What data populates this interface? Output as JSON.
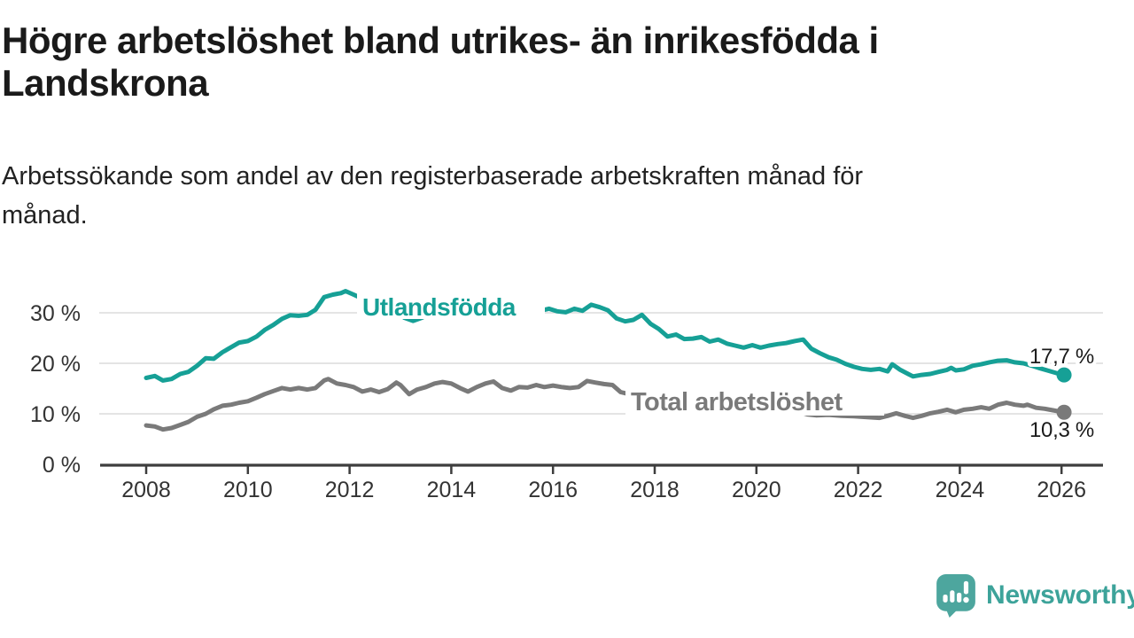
{
  "header": {
    "title": "Högre arbetslöshet bland utrikes- än inrikesfödda i Landskrona",
    "subtitle": "Arbetssökande som andel av den registerbaserade arbetskraften månad för månad."
  },
  "colors": {
    "accent_teal": "#16a096",
    "series_gray": "#7a7a7a",
    "title_text": "#1a1a1a",
    "axis_text": "#333333",
    "gridline": "#dcdcdc",
    "axis_line": "#3d3d3d",
    "logo_teal": "#4da69e",
    "logo_text_teal": "#3da39a",
    "end_label_text": "#1a1a1a"
  },
  "chart_data": {
    "type": "line",
    "title": "Högre arbetslöshet bland utrikes- än inrikesfödda i Landskrona",
    "subtitle": "Arbetssökande som andel av den registerbaserade arbetskraften månad för månad.",
    "xlabel": "",
    "ylabel": "",
    "unit": "%",
    "grid": "horizontal",
    "legend_position": "inline-labels",
    "xlim": [
      2007.6,
      2026.9
    ],
    "ylim": [
      0,
      36
    ],
    "x_ticks": [
      2008,
      2010,
      2012,
      2014,
      2016,
      2018,
      2020,
      2022,
      2024,
      2026
    ],
    "y_ticks": [
      0,
      10,
      20,
      30
    ],
    "y_tick_labels": [
      "0 %",
      "10 %",
      "20 %",
      "30 %"
    ],
    "series": [
      {
        "name": "Utlandsfödda",
        "color": "#16a096",
        "end_value": 17.7,
        "end_label": "17,7 %",
        "points": [
          [
            2008.0,
            17.1
          ],
          [
            2008.17,
            17.5
          ],
          [
            2008.33,
            16.6
          ],
          [
            2008.5,
            16.9
          ],
          [
            2008.67,
            17.9
          ],
          [
            2008.83,
            18.3
          ],
          [
            2009.0,
            19.5
          ],
          [
            2009.17,
            21.0
          ],
          [
            2009.33,
            20.9
          ],
          [
            2009.5,
            22.2
          ],
          [
            2009.67,
            23.2
          ],
          [
            2009.83,
            24.1
          ],
          [
            2010.0,
            24.4
          ],
          [
            2010.17,
            25.3
          ],
          [
            2010.33,
            26.6
          ],
          [
            2010.5,
            27.6
          ],
          [
            2010.67,
            28.8
          ],
          [
            2010.83,
            29.5
          ],
          [
            2011.0,
            29.4
          ],
          [
            2011.17,
            29.6
          ],
          [
            2011.33,
            30.6
          ],
          [
            2011.5,
            33.1
          ],
          [
            2011.67,
            33.6
          ],
          [
            2011.83,
            33.9
          ],
          [
            2011.92,
            34.3
          ],
          [
            2012.08,
            33.6
          ],
          [
            2012.25,
            32.8
          ],
          [
            2012.42,
            31.9
          ],
          [
            2012.58,
            31.4
          ],
          [
            2012.75,
            31.0
          ],
          [
            2012.92,
            30.2
          ],
          [
            2013.08,
            29.0
          ],
          [
            2013.25,
            28.4
          ],
          [
            2013.42,
            29.0
          ],
          [
            2013.58,
            29.8
          ],
          [
            2013.75,
            30.3
          ],
          [
            2013.92,
            30.8
          ],
          [
            2014.08,
            31.2
          ],
          [
            2014.25,
            31.0
          ],
          [
            2014.42,
            30.6
          ],
          [
            2014.58,
            30.9
          ],
          [
            2014.75,
            31.2
          ],
          [
            2014.92,
            30.9
          ],
          [
            2015.08,
            30.4
          ],
          [
            2015.25,
            30.1
          ],
          [
            2015.42,
            30.3
          ],
          [
            2015.58,
            30.6
          ],
          [
            2015.75,
            30.4
          ],
          [
            2015.92,
            30.8
          ],
          [
            2016.08,
            30.3
          ],
          [
            2016.25,
            30.1
          ],
          [
            2016.42,
            30.8
          ],
          [
            2016.58,
            30.4
          ],
          [
            2016.75,
            31.6
          ],
          [
            2016.92,
            31.1
          ],
          [
            2017.08,
            30.5
          ],
          [
            2017.25,
            28.9
          ],
          [
            2017.42,
            28.3
          ],
          [
            2017.58,
            28.6
          ],
          [
            2017.75,
            29.6
          ],
          [
            2017.92,
            27.8
          ],
          [
            2018.08,
            26.8
          ],
          [
            2018.25,
            25.3
          ],
          [
            2018.42,
            25.7
          ],
          [
            2018.58,
            24.8
          ],
          [
            2018.75,
            24.9
          ],
          [
            2018.92,
            25.2
          ],
          [
            2019.08,
            24.3
          ],
          [
            2019.25,
            24.7
          ],
          [
            2019.42,
            23.9
          ],
          [
            2019.58,
            23.5
          ],
          [
            2019.75,
            23.1
          ],
          [
            2019.92,
            23.6
          ],
          [
            2020.08,
            23.1
          ],
          [
            2020.25,
            23.5
          ],
          [
            2020.42,
            23.8
          ],
          [
            2020.58,
            24.0
          ],
          [
            2020.75,
            24.4
          ],
          [
            2020.92,
            24.7
          ],
          [
            2021.08,
            22.9
          ],
          [
            2021.25,
            22.0
          ],
          [
            2021.42,
            21.2
          ],
          [
            2021.58,
            20.7
          ],
          [
            2021.75,
            19.9
          ],
          [
            2021.92,
            19.3
          ],
          [
            2022.08,
            18.9
          ],
          [
            2022.25,
            18.7
          ],
          [
            2022.42,
            18.9
          ],
          [
            2022.58,
            18.4
          ],
          [
            2022.67,
            19.8
          ],
          [
            2022.83,
            18.7
          ],
          [
            2023.0,
            17.8
          ],
          [
            2023.08,
            17.4
          ],
          [
            2023.25,
            17.7
          ],
          [
            2023.42,
            17.9
          ],
          [
            2023.58,
            18.3
          ],
          [
            2023.75,
            18.7
          ],
          [
            2023.83,
            19.1
          ],
          [
            2023.92,
            18.6
          ],
          [
            2024.08,
            18.8
          ],
          [
            2024.25,
            19.5
          ],
          [
            2024.42,
            19.8
          ],
          [
            2024.58,
            20.2
          ],
          [
            2024.75,
            20.5
          ],
          [
            2024.92,
            20.6
          ],
          [
            2025.08,
            20.2
          ],
          [
            2025.25,
            20.0
          ],
          [
            2025.42,
            19.5
          ],
          [
            2025.58,
            19.0
          ],
          [
            2025.75,
            18.5
          ],
          [
            2025.92,
            18.0
          ],
          [
            2026.05,
            17.7
          ]
        ]
      },
      {
        "name": "Total arbetslöshet",
        "color": "#7a7a7a",
        "end_value": 10.3,
        "end_label": "10,3 %",
        "points": [
          [
            2008.0,
            7.7
          ],
          [
            2008.17,
            7.5
          ],
          [
            2008.33,
            6.9
          ],
          [
            2008.5,
            7.2
          ],
          [
            2008.67,
            7.8
          ],
          [
            2008.83,
            8.4
          ],
          [
            2009.0,
            9.4
          ],
          [
            2009.17,
            10.0
          ],
          [
            2009.33,
            10.9
          ],
          [
            2009.5,
            11.6
          ],
          [
            2009.67,
            11.8
          ],
          [
            2009.83,
            12.2
          ],
          [
            2010.0,
            12.5
          ],
          [
            2010.17,
            13.2
          ],
          [
            2010.33,
            13.9
          ],
          [
            2010.5,
            14.5
          ],
          [
            2010.67,
            15.1
          ],
          [
            2010.83,
            14.8
          ],
          [
            2011.0,
            15.1
          ],
          [
            2011.17,
            14.8
          ],
          [
            2011.33,
            15.1
          ],
          [
            2011.5,
            16.6
          ],
          [
            2011.58,
            16.9
          ],
          [
            2011.75,
            16.0
          ],
          [
            2011.92,
            15.7
          ],
          [
            2012.08,
            15.3
          ],
          [
            2012.25,
            14.4
          ],
          [
            2012.42,
            14.8
          ],
          [
            2012.58,
            14.3
          ],
          [
            2012.75,
            14.9
          ],
          [
            2012.92,
            16.2
          ],
          [
            2013.0,
            15.7
          ],
          [
            2013.17,
            13.9
          ],
          [
            2013.33,
            14.8
          ],
          [
            2013.5,
            15.3
          ],
          [
            2013.67,
            16.0
          ],
          [
            2013.83,
            16.3
          ],
          [
            2014.0,
            16.0
          ],
          [
            2014.17,
            15.1
          ],
          [
            2014.33,
            14.4
          ],
          [
            2014.5,
            15.3
          ],
          [
            2014.67,
            16.0
          ],
          [
            2014.83,
            16.4
          ],
          [
            2015.0,
            15.1
          ],
          [
            2015.17,
            14.6
          ],
          [
            2015.33,
            15.3
          ],
          [
            2015.5,
            15.2
          ],
          [
            2015.67,
            15.7
          ],
          [
            2015.83,
            15.3
          ],
          [
            2016.0,
            15.6
          ],
          [
            2016.17,
            15.3
          ],
          [
            2016.33,
            15.1
          ],
          [
            2016.5,
            15.3
          ],
          [
            2016.67,
            16.5
          ],
          [
            2016.83,
            16.2
          ],
          [
            2017.0,
            15.9
          ],
          [
            2017.17,
            15.7
          ],
          [
            2017.33,
            14.3
          ],
          [
            2017.5,
            13.9
          ],
          [
            2017.58,
            14.2
          ],
          [
            2017.75,
            13.6
          ],
          [
            2017.92,
            13.1
          ],
          [
            2018.08,
            12.7
          ],
          [
            2018.33,
            12.3
          ],
          [
            2018.58,
            12.0
          ],
          [
            2018.83,
            11.8
          ],
          [
            2019.08,
            11.5
          ],
          [
            2019.33,
            11.3
          ],
          [
            2019.58,
            11.1
          ],
          [
            2019.83,
            11.0
          ],
          [
            2020.08,
            11.4
          ],
          [
            2020.33,
            11.6
          ],
          [
            2020.58,
            11.2
          ],
          [
            2020.83,
            10.4
          ],
          [
            2021.0,
            9.9
          ],
          [
            2021.17,
            9.7
          ],
          [
            2021.42,
            9.8
          ],
          [
            2021.67,
            9.6
          ],
          [
            2021.92,
            9.5
          ],
          [
            2022.08,
            9.4
          ],
          [
            2022.25,
            9.3
          ],
          [
            2022.42,
            9.2
          ],
          [
            2022.58,
            9.6
          ],
          [
            2022.75,
            10.1
          ],
          [
            2022.92,
            9.6
          ],
          [
            2023.08,
            9.2
          ],
          [
            2023.25,
            9.6
          ],
          [
            2023.42,
            10.1
          ],
          [
            2023.58,
            10.4
          ],
          [
            2023.75,
            10.8
          ],
          [
            2023.92,
            10.3
          ],
          [
            2024.08,
            10.8
          ],
          [
            2024.25,
            11.0
          ],
          [
            2024.42,
            11.3
          ],
          [
            2024.58,
            11.0
          ],
          [
            2024.75,
            11.8
          ],
          [
            2024.92,
            12.2
          ],
          [
            2025.08,
            11.8
          ],
          [
            2025.25,
            11.6
          ],
          [
            2025.33,
            11.8
          ],
          [
            2025.5,
            11.2
          ],
          [
            2025.67,
            11.0
          ],
          [
            2025.83,
            10.7
          ],
          [
            2026.05,
            10.3
          ]
        ]
      }
    ]
  },
  "footer": {
    "brand": "Newsworthy"
  }
}
